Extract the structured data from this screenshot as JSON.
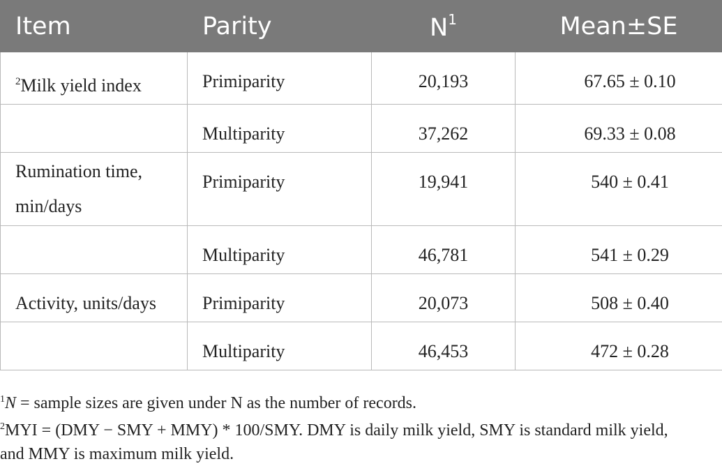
{
  "table": {
    "headers": {
      "item": "Item",
      "parity": "Parity",
      "n": "N",
      "n_sup": "1",
      "mean": "Mean±SE"
    },
    "rows": [
      {
        "item_sup": "2",
        "item": "Milk yield index",
        "parity": "Primiparity",
        "n": "20,193",
        "mean": "67.65 ± 0.10"
      },
      {
        "item_sup": "",
        "item": "",
        "parity": "Multiparity",
        "n": "37,262",
        "mean": "69.33 ± 0.08"
      },
      {
        "item_sup": "",
        "item": "Rumination time, min/days",
        "parity": "Primiparity",
        "n": "19,941",
        "mean": "540 ± 0.41"
      },
      {
        "item_sup": "",
        "item": "",
        "parity": "Multiparity",
        "n": "46,781",
        "mean": "541 ± 0.29"
      },
      {
        "item_sup": "",
        "item": "Activity, units/days",
        "parity": "Primiparity",
        "n": "20,073",
        "mean": "508 ± 0.40"
      },
      {
        "item_sup": "",
        "item": "",
        "parity": "Multiparity",
        "n": "46,453",
        "mean": "472 ± 0.28"
      }
    ]
  },
  "footnotes": {
    "note1_sup": "1",
    "note1_var": "N",
    "note1_text": " = sample sizes are given under N as the number of records.",
    "note2_sup": "2",
    "note2_line1": "MYI = (DMY − SMY + MMY) * 100/SMY. DMY is daily milk yield, SMY is standard milk yield,",
    "note2_line2": "and MMY is maximum milk yield."
  }
}
